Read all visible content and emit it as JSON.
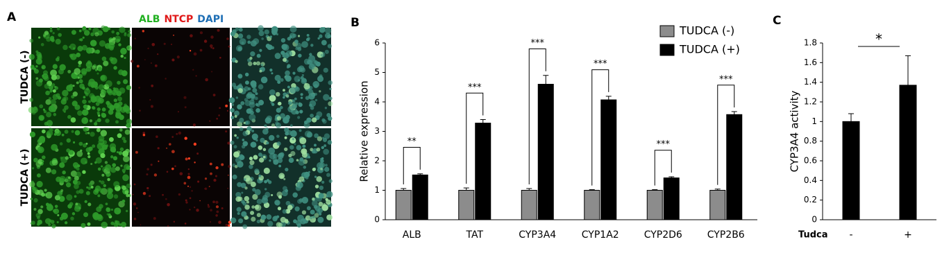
{
  "panels": {
    "a": "A",
    "b": "B",
    "c": "C"
  },
  "images": {
    "stain_labels": [
      {
        "text": "ALB",
        "color": "#22b022"
      },
      {
        "text": "NTCP",
        "color": "#e01818"
      },
      {
        "text": "DAPI",
        "color": "#1f6fb5"
      }
    ],
    "row_labels": [
      "TUDCA (-)",
      "TUDCA (+)"
    ]
  },
  "chart_data": [
    {
      "type": "bar",
      "ylabel": "Relative expression",
      "categories": [
        "ALB",
        "TAT",
        "CYP3A4",
        "CYP1A2",
        "CYP2D6",
        "CYP2B6"
      ],
      "series": [
        {
          "name": "TUDCA (-)",
          "color": "#8c8c8c",
          "values": [
            1.0,
            1.0,
            1.0,
            1.0,
            1.0,
            1.0
          ],
          "errors": [
            0.06,
            0.08,
            0.06,
            0.02,
            0.02,
            0.04
          ]
        },
        {
          "name": "TUDCA (+)",
          "color": "#000000",
          "values": [
            1.52,
            3.28,
            4.6,
            4.07,
            1.42,
            3.57
          ],
          "errors": [
            0.04,
            0.12,
            0.3,
            0.12,
            0.04,
            0.1
          ]
        }
      ],
      "ylim": [
        0,
        6
      ],
      "yticks": [
        0,
        1,
        2,
        3,
        4,
        5,
        6
      ],
      "legend": "upper right",
      "annotations": [
        {
          "category": 0,
          "text": "**"
        },
        {
          "category": 1,
          "text": "***"
        },
        {
          "category": 2,
          "text": "***"
        },
        {
          "category": 3,
          "text": "***"
        },
        {
          "category": 4,
          "text": "***"
        },
        {
          "category": 5,
          "text": "***"
        }
      ]
    },
    {
      "type": "bar",
      "ylabel": "CYP3A4 activity",
      "xlabel": "Tudca",
      "categories": [
        "-",
        "+"
      ],
      "series": [
        {
          "color": "#000000",
          "values": [
            1.0,
            1.37
          ],
          "errors": [
            0.08,
            0.3
          ]
        }
      ],
      "ylim": [
        0,
        1.8
      ],
      "yticks": [
        0,
        0.2,
        0.4,
        0.6,
        0.8,
        1,
        1.2,
        1.4,
        1.6,
        1.8
      ],
      "annotations": [
        {
          "from": 0,
          "to": 1,
          "text": "*"
        }
      ]
    }
  ]
}
